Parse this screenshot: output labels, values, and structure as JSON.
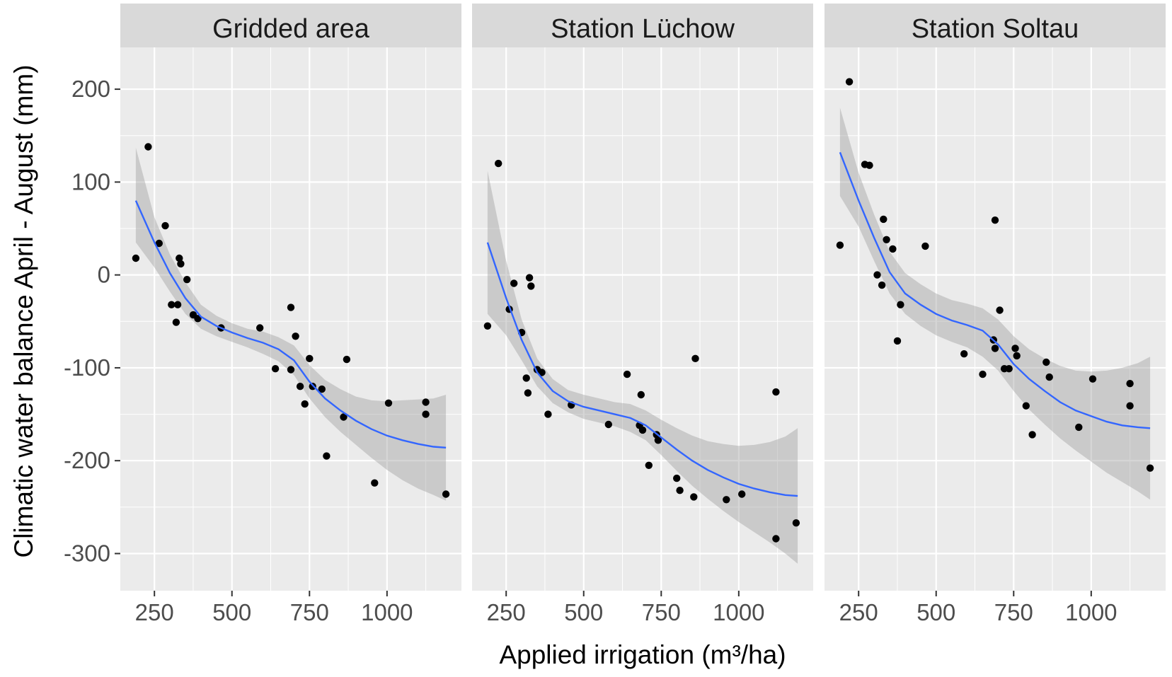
{
  "chart_data": {
    "type": "scatter",
    "xlabel": "Applied irrigation (m³/ha)",
    "ylabel": "Climatic water balance April - August (mm)",
    "xlim": [
      140,
      1240
    ],
    "ylim": [
      -340,
      245
    ],
    "x_ticks": [
      250,
      500,
      750,
      1000
    ],
    "x_tick_labels": [
      "250",
      "500",
      "750",
      "1000"
    ],
    "x_minor_gridlines": [
      375,
      625,
      875,
      1125
    ],
    "y_ticks": [
      200,
      100,
      0,
      -100,
      -200,
      -300
    ],
    "y_tick_labels": [
      "200",
      "100",
      "0",
      "-100",
      "-200",
      "-300"
    ],
    "y_minor_gridlines": [
      150,
      50,
      -50,
      -150,
      -250
    ],
    "grid": true,
    "legend": "none",
    "colors": {
      "panel_bg": "#ebebeb",
      "strip_bg": "#d9d9d9",
      "grid": "#ffffff",
      "point": "#000000",
      "smooth_line": "#3366ff",
      "ribbon": "#999999"
    },
    "facets": [
      {
        "title": "Gridded area",
        "points": [
          [
            190,
            18
          ],
          [
            230,
            138
          ],
          [
            265,
            34
          ],
          [
            285,
            53
          ],
          [
            305,
            -32
          ],
          [
            320,
            -51
          ],
          [
            325,
            -32
          ],
          [
            330,
            18
          ],
          [
            335,
            12
          ],
          [
            355,
            -5
          ],
          [
            375,
            -43
          ],
          [
            390,
            -47
          ],
          [
            465,
            -57
          ],
          [
            590,
            -57
          ],
          [
            640,
            -101
          ],
          [
            690,
            -35
          ],
          [
            690,
            -102
          ],
          [
            705,
            -66
          ],
          [
            720,
            -120
          ],
          [
            735,
            -139
          ],
          [
            750,
            -90
          ],
          [
            760,
            -120
          ],
          [
            790,
            -123
          ],
          [
            805,
            -195
          ],
          [
            860,
            -153
          ],
          [
            870,
            -91
          ],
          [
            960,
            -224
          ],
          [
            1005,
            -138
          ],
          [
            1125,
            -137
          ],
          [
            1125,
            -150
          ],
          [
            1190,
            -236
          ]
        ],
        "smooth": {
          "x": [
            190,
            250,
            300,
            350,
            400,
            450,
            500,
            550,
            600,
            650,
            700,
            750,
            800,
            850,
            900,
            950,
            1000,
            1050,
            1100,
            1150,
            1190
          ],
          "y": [
            80,
            35,
            2,
            -25,
            -45,
            -55,
            -62,
            -68,
            -73,
            -80,
            -92,
            -115,
            -133,
            -146,
            -157,
            -166,
            -173,
            -178,
            -182,
            -185,
            -186
          ],
          "lower": [
            35,
            8,
            -18,
            -42,
            -58,
            -66,
            -72,
            -78,
            -85,
            -93,
            -108,
            -133,
            -153,
            -169,
            -183,
            -197,
            -210,
            -221,
            -230,
            -237,
            -243
          ],
          "upper": [
            137,
            62,
            22,
            -8,
            -32,
            -44,
            -52,
            -58,
            -61,
            -67,
            -76,
            -97,
            -113,
            -123,
            -131,
            -135,
            -136,
            -135,
            -134,
            -133,
            -129
          ]
        }
      },
      {
        "title": "Station Lüchow",
        "points": [
          [
            190,
            -55
          ],
          [
            225,
            120
          ],
          [
            260,
            -37
          ],
          [
            275,
            -9
          ],
          [
            300,
            -62
          ],
          [
            315,
            -111
          ],
          [
            320,
            -127
          ],
          [
            325,
            -3
          ],
          [
            330,
            -12
          ],
          [
            350,
            -102
          ],
          [
            365,
            -105
          ],
          [
            385,
            -150
          ],
          [
            460,
            -140
          ],
          [
            580,
            -161
          ],
          [
            640,
            -107
          ],
          [
            680,
            -162
          ],
          [
            685,
            -129
          ],
          [
            690,
            -167
          ],
          [
            710,
            -205
          ],
          [
            735,
            -172
          ],
          [
            740,
            -178
          ],
          [
            800,
            -219
          ],
          [
            810,
            -232
          ],
          [
            855,
            -239
          ],
          [
            860,
            -90
          ],
          [
            960,
            -242
          ],
          [
            1010,
            -236
          ],
          [
            1120,
            -284
          ],
          [
            1120,
            -126
          ],
          [
            1185,
            -267
          ]
        ],
        "smooth": {
          "x": [
            190,
            250,
            300,
            350,
            400,
            450,
            500,
            550,
            600,
            650,
            700,
            750,
            800,
            850,
            900,
            950,
            1000,
            1050,
            1100,
            1150,
            1190
          ],
          "y": [
            35,
            -25,
            -70,
            -105,
            -125,
            -136,
            -142,
            -146,
            -150,
            -154,
            -162,
            -175,
            -188,
            -200,
            -210,
            -218,
            -225,
            -230,
            -234,
            -237,
            -238
          ],
          "lower": [
            -42,
            -65,
            -92,
            -120,
            -138,
            -148,
            -155,
            -159,
            -163,
            -169,
            -178,
            -194,
            -211,
            -227,
            -241,
            -254,
            -266,
            -277,
            -288,
            -300,
            -311
          ],
          "upper": [
            112,
            15,
            -48,
            -90,
            -112,
            -124,
            -129,
            -133,
            -137,
            -139,
            -146,
            -156,
            -165,
            -173,
            -179,
            -182,
            -184,
            -183,
            -180,
            -174,
            -165
          ]
        }
      },
      {
        "title": "Station Soltau",
        "points": [
          [
            190,
            32
          ],
          [
            220,
            208
          ],
          [
            270,
            119
          ],
          [
            285,
            118
          ],
          [
            310,
            0
          ],
          [
            325,
            -11
          ],
          [
            330,
            60
          ],
          [
            340,
            38
          ],
          [
            360,
            28
          ],
          [
            375,
            -71
          ],
          [
            385,
            -32
          ],
          [
            465,
            31
          ],
          [
            590,
            -85
          ],
          [
            650,
            -107
          ],
          [
            685,
            -70
          ],
          [
            690,
            59
          ],
          [
            690,
            -79
          ],
          [
            705,
            -38
          ],
          [
            720,
            -101
          ],
          [
            735,
            -101
          ],
          [
            755,
            -79
          ],
          [
            760,
            -87
          ],
          [
            790,
            -141
          ],
          [
            810,
            -172
          ],
          [
            855,
            -94
          ],
          [
            865,
            -110
          ],
          [
            960,
            -164
          ],
          [
            1005,
            -112
          ],
          [
            1125,
            -117
          ],
          [
            1125,
            -141
          ],
          [
            1190,
            -208
          ]
        ],
        "smooth": {
          "x": [
            190,
            250,
            300,
            350,
            400,
            450,
            500,
            550,
            600,
            650,
            700,
            750,
            800,
            850,
            900,
            950,
            1000,
            1050,
            1100,
            1150,
            1190
          ],
          "y": [
            132,
            80,
            40,
            3,
            -20,
            -32,
            -42,
            -49,
            -54,
            -60,
            -75,
            -96,
            -112,
            -125,
            -137,
            -146,
            -152,
            -158,
            -162,
            -164,
            -165
          ],
          "lower": [
            85,
            52,
            15,
            -20,
            -42,
            -55,
            -65,
            -72,
            -78,
            -88,
            -103,
            -125,
            -145,
            -161,
            -176,
            -189,
            -201,
            -213,
            -223,
            -233,
            -242
          ],
          "upper": [
            180,
            110,
            65,
            25,
            2,
            -10,
            -20,
            -27,
            -31,
            -36,
            -48,
            -66,
            -80,
            -90,
            -98,
            -103,
            -104,
            -103,
            -100,
            -95,
            -88
          ]
        }
      }
    ]
  }
}
